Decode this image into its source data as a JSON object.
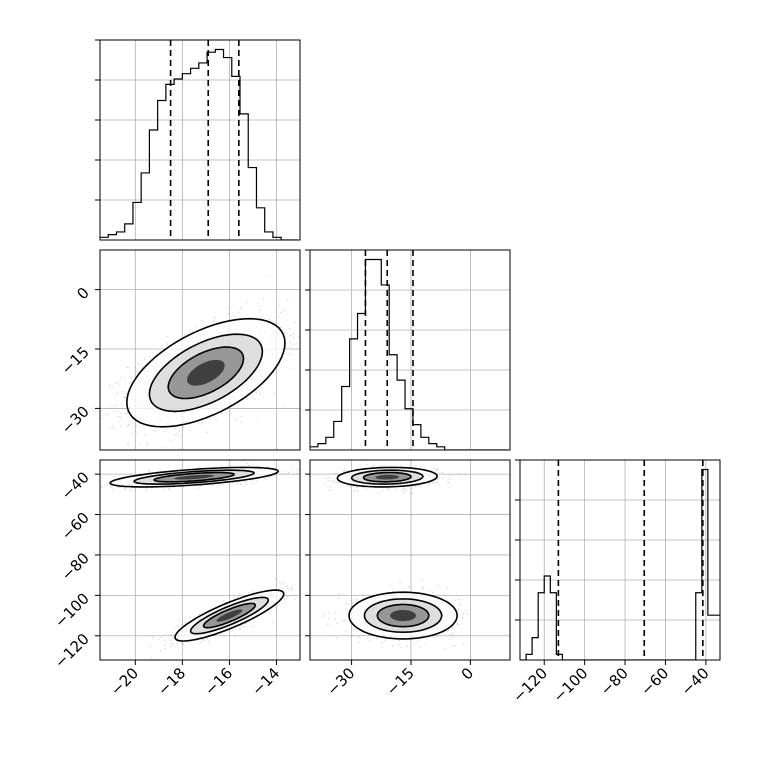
{
  "chart_data": {
    "type": "corner",
    "grid": true,
    "params": [
      {
        "range": [
          -21.5,
          -13.0
        ],
        "ticks": [
          "−20",
          "−18",
          "−16",
          "−14"
        ],
        "tick_values": [
          -20,
          -18,
          -16,
          -14
        ],
        "quantiles": [
          -18.5,
          -16.9,
          -15.6
        ]
      },
      {
        "range": [
          -40.5,
          10.0
        ],
        "ticks": [
          "0",
          "−15",
          "−30"
        ],
        "tick_values": [
          0,
          -15,
          -30
        ],
        "x_ticks": [
          "−30",
          "−15",
          "0"
        ],
        "x_tick_values": [
          -30,
          -15,
          0
        ],
        "quantiles": [
          -26.5,
          -21.0,
          -14.5
        ]
      },
      {
        "range": [
          -132.0,
          -33.0
        ],
        "ticks": [
          "−40",
          "−60",
          "−80",
          "−100",
          "−120"
        ],
        "tick_values": [
          -40,
          -60,
          -80,
          -100,
          -120
        ],
        "x_ticks": [
          "−120",
          "−100",
          "−80",
          "−60",
          "−40"
        ],
        "x_tick_values": [
          -120,
          -100,
          -80,
          -60,
          -40
        ],
        "quantiles": [
          -113.0,
          -70.5,
          -41.5
        ]
      }
    ],
    "histograms": [
      {
        "param": 0,
        "bin_start": -21.5,
        "bin_width": 0.35,
        "counts": [
          1,
          2,
          3,
          6,
          14,
          25,
          41,
          52,
          58,
          60,
          62,
          64,
          66,
          70,
          71,
          68,
          61,
          47,
          27,
          12,
          3,
          1,
          0,
          0
        ]
      },
      {
        "param": 1,
        "bin_start": -40.5,
        "bin_width": 2.0,
        "counts": [
          1,
          2,
          4,
          9,
          20,
          35,
          43,
          60,
          60,
          52,
          30,
          22,
          13,
          8,
          4,
          2,
          1,
          0,
          0,
          0,
          0,
          0,
          0,
          0,
          0
        ]
      },
      {
        "param": 2,
        "bin_start": -132.0,
        "bin_width": 3.0,
        "counts": [
          0,
          1,
          4,
          12,
          15,
          12,
          1,
          0,
          0,
          0,
          0,
          0,
          0,
          0,
          0,
          0,
          0,
          0,
          0,
          0,
          0,
          0,
          0,
          0,
          0,
          0,
          0,
          0,
          0,
          12,
          34,
          8,
          8
        ]
      }
    ],
    "pairs": [
      {
        "x": 0,
        "y": 1,
        "clusters": [
          {
            "cx": -17.0,
            "cy": -21.0,
            "sx": 1.6,
            "sy": 6.5,
            "rho": 0.55,
            "n": 1600
          }
        ]
      },
      {
        "x": 0,
        "y": 2,
        "clusters": [
          {
            "cx": -17.5,
            "cy": -41.5,
            "sx": 1.7,
            "sy": 2.3,
            "rho": 0.6,
            "n": 800
          },
          {
            "cx": -16.0,
            "cy": -110.0,
            "sx": 1.1,
            "sy": 6.0,
            "rho": 0.85,
            "n": 800
          }
        ]
      },
      {
        "x": 1,
        "y": 2,
        "clusters": [
          {
            "cx": -21.0,
            "cy": -41.5,
            "sx": 6.0,
            "sy": 2.3,
            "rho": 0.1,
            "n": 800
          },
          {
            "cx": -17.0,
            "cy": -110.0,
            "sx": 6.5,
            "sy": 5.5,
            "rho": 0.0,
            "n": 800
          }
        ]
      }
    ]
  }
}
